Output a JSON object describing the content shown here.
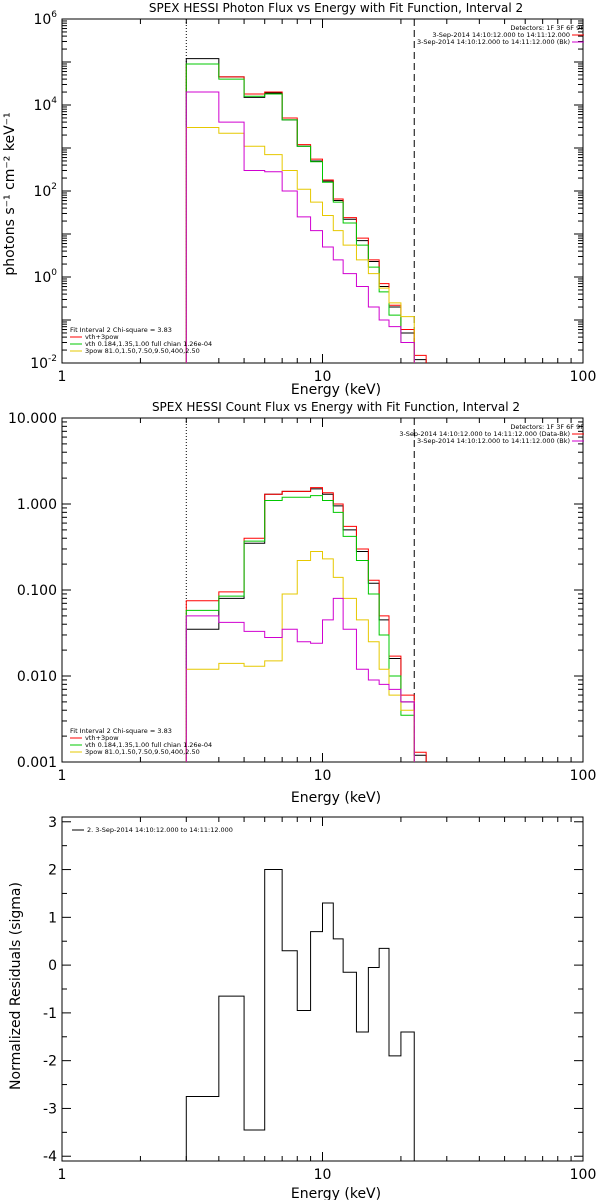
{
  "colors": {
    "total": "#000000",
    "fit_sum": "#ff0000",
    "vth": "#00c800",
    "powerlaw": "#e6c800",
    "background": "#d000d0",
    "residual": "#000000"
  },
  "chart_data": [
    {
      "type": "line",
      "title": "SPEX HESSI Photon Flux vs Energy with Fit Function, Interval 2",
      "xlabel": "Energy (keV)",
      "ylabel": "photons s⁻¹ cm⁻² keV⁻¹",
      "x_scale": "log",
      "y_scale": "log",
      "xlim": [
        1,
        100
      ],
      "ylim": [
        0.01,
        1000000
      ],
      "x_ticks": [
        {
          "v": 1,
          "label": "1"
        },
        {
          "v": 10,
          "label": "10"
        },
        {
          "v": 100,
          "label": "100"
        }
      ],
      "y_ticks": [
        {
          "v": 0.01,
          "base": "10",
          "exp": "-2"
        },
        {
          "v": 1,
          "base": "10",
          "exp": "0"
        },
        {
          "v": 100,
          "base": "10",
          "exp": "2"
        },
        {
          "v": 10000,
          "base": "10",
          "exp": "4"
        },
        {
          "v": 1000000,
          "base": "10",
          "exp": "6"
        }
      ],
      "vlines": [
        {
          "x": 3.0,
          "style": "dotted"
        },
        {
          "x": 22.5,
          "style": "dashed"
        }
      ],
      "legend_topright": {
        "header": "Detectors: 1F 3F 6F 9F",
        "entries": [
          {
            "text": "3-Sep-2014 14:10:12.000 to 14:11:12.000",
            "color_key": "fit_sum"
          },
          {
            "text": "3-Sep-2014 14:10:12.000 to 14:11:12.000 (Bk)",
            "color_key": "background"
          }
        ]
      },
      "legend_bottomleft": {
        "header": "Fit Interval 2   Chi-square = 3.83",
        "entries": [
          {
            "text": "vth+3pow",
            "color_key": "fit_sum"
          },
          {
            "text": "vth 0.184,1.35,1.00  full chian 1.26e-04",
            "color_key": "vth"
          },
          {
            "text": "3pow 81.0,1.50,7.50,9.50,400,2.50",
            "color_key": "powerlaw"
          }
        ]
      },
      "edges": [
        3,
        4,
        5,
        6,
        7,
        8,
        9,
        10,
        11,
        12,
        13.5,
        15,
        16.5,
        18,
        20,
        22.5,
        25
      ],
      "series": [
        {
          "key": "total",
          "values": [
            120000,
            45000,
            15000,
            19000,
            4500,
            1100,
            500,
            170,
            60,
            22,
            7,
            2.3,
            0.6,
            0.2,
            0.05,
            0.012
          ]
        },
        {
          "key": "fit_sum",
          "values": [
            90000,
            45000,
            18000,
            20000,
            5000,
            1200,
            550,
            180,
            65,
            24,
            8,
            2.5,
            0.7,
            0.22,
            0.06,
            0.015
          ]
        },
        {
          "key": "vth",
          "values": [
            90000,
            40000,
            16000,
            18000,
            4500,
            1100,
            480,
            160,
            55,
            18,
            5.5,
            1.7,
            0.45,
            0.13,
            0.03
          ]
        },
        {
          "key": "powerlaw",
          "values": [
            3000,
            2200,
            1100,
            700,
            300,
            110,
            55,
            27,
            12,
            5.5,
            2.5,
            1.2,
            0.55,
            0.25,
            0.12
          ]
        },
        {
          "key": "background",
          "values": [
            20000,
            4000,
            300,
            280,
            100,
            25,
            12,
            5,
            2.5,
            1.2,
            0.6,
            0.2,
            0.1,
            0.07,
            0.03
          ]
        }
      ]
    },
    {
      "type": "line",
      "title": "SPEX HESSI Count Flux vs Energy with Fit Function, Interval 2",
      "xlabel": "Energy (keV)",
      "ylabel": "",
      "x_scale": "log",
      "y_scale": "log",
      "xlim": [
        1,
        100
      ],
      "ylim": [
        0.001,
        10
      ],
      "x_ticks": [
        {
          "v": 1,
          "label": "1"
        },
        {
          "v": 10,
          "label": "10"
        },
        {
          "v": 100,
          "label": "100"
        }
      ],
      "y_ticks": [
        {
          "v": 0.001,
          "label": "0.001"
        },
        {
          "v": 0.01,
          "label": "0.010"
        },
        {
          "v": 0.1,
          "label": "0.100"
        },
        {
          "v": 1,
          "label": "1.000"
        },
        {
          "v": 10,
          "label": "10.000"
        }
      ],
      "vlines": [
        {
          "x": 3.0,
          "style": "dotted"
        },
        {
          "x": 22.5,
          "style": "dashed"
        }
      ],
      "legend_topright": {
        "header": "Detectors: 1F 3F 6F 9F",
        "entries": [
          {
            "text": "3-Sep-2014 14:10:12.000 to 14:11:12.000 (Data-Bk)",
            "color_key": "fit_sum"
          },
          {
            "text": "3-Sep-2014 14:10:12.000 to 14:11:12.000 (Bk)",
            "color_key": "background"
          }
        ]
      },
      "legend_bottomleft": {
        "header": "Fit Interval 2   Chi-square = 3.83",
        "entries": [
          {
            "text": "vth+3pow",
            "color_key": "fit_sum"
          },
          {
            "text": "vth 0.184,1.35,1.00  full chian 1.26e-04",
            "color_key": "vth"
          },
          {
            "text": "3pow 81.0,1.50,7.50,9.50,400,2.50",
            "color_key": "powerlaw"
          }
        ]
      },
      "edges": [
        3,
        4,
        5,
        6,
        7,
        8,
        9,
        10,
        11,
        12,
        13.5,
        15,
        16.5,
        18,
        20,
        22.5,
        25
      ],
      "series": [
        {
          "key": "total",
          "values": [
            0.035,
            0.08,
            0.35,
            1.3,
            1.4,
            1.4,
            1.5,
            1.3,
            0.95,
            0.5,
            0.28,
            0.12,
            0.045,
            0.016,
            0.005,
            0.0012
          ]
        },
        {
          "key": "fit_sum",
          "values": [
            0.075,
            0.095,
            0.4,
            1.3,
            1.4,
            1.4,
            1.55,
            1.35,
            1.0,
            0.55,
            0.3,
            0.13,
            0.05,
            0.017,
            0.006,
            0.0013
          ]
        },
        {
          "key": "vth",
          "values": [
            0.058,
            0.085,
            0.37,
            1.1,
            1.2,
            1.2,
            1.25,
            1.1,
            0.8,
            0.42,
            0.22,
            0.09,
            0.03,
            0.01,
            0.0035
          ]
        },
        {
          "key": "powerlaw",
          "values": [
            0.012,
            0.014,
            0.013,
            0.015,
            0.09,
            0.22,
            0.28,
            0.23,
            0.14,
            0.08,
            0.045,
            0.025,
            0.012,
            0.006,
            0.004
          ]
        },
        {
          "key": "background",
          "values": [
            0.05,
            0.042,
            0.033,
            0.028,
            0.035,
            0.025,
            0.024,
            0.045,
            0.08,
            0.035,
            0.012,
            0.009,
            0.008,
            0.007,
            0.005
          ]
        }
      ]
    },
    {
      "type": "line",
      "title": "",
      "xlabel": "Energy (keV)",
      "ylabel": "Normalized Residuals (sigma)",
      "x_scale": "log",
      "y_scale": "linear",
      "xlim": [
        1,
        100
      ],
      "ylim": [
        -4.1,
        3.1
      ],
      "x_ticks": [
        {
          "v": 1,
          "label": "1"
        },
        {
          "v": 10,
          "label": "10"
        },
        {
          "v": 100,
          "label": "100"
        }
      ],
      "y_ticks": [
        {
          "v": -4,
          "label": "-4"
        },
        {
          "v": -3,
          "label": "-3"
        },
        {
          "v": -2,
          "label": "-2"
        },
        {
          "v": -1,
          "label": "-1"
        },
        {
          "v": 0,
          "label": "0"
        },
        {
          "v": 1,
          "label": "1"
        },
        {
          "v": 2,
          "label": "2"
        },
        {
          "v": 3,
          "label": "3"
        }
      ],
      "legend_topleft": {
        "entries": [
          {
            "text": "2.  3-Sep-2014 14:10:12.000 to 14:11:12.000",
            "color_key": "residual"
          }
        ]
      },
      "edges": [
        3,
        4,
        5,
        6,
        7,
        8,
        9,
        10,
        11,
        12,
        13.5,
        15,
        16.5,
        18,
        20,
        22.5
      ],
      "series": [
        {
          "key": "residual",
          "values": [
            -2.75,
            -0.65,
            -3.45,
            2.0,
            0.3,
            -0.95,
            0.7,
            1.3,
            0.55,
            -0.15,
            -1.4,
            -0.05,
            0.35,
            -1.9,
            -1.4
          ]
        }
      ]
    }
  ]
}
